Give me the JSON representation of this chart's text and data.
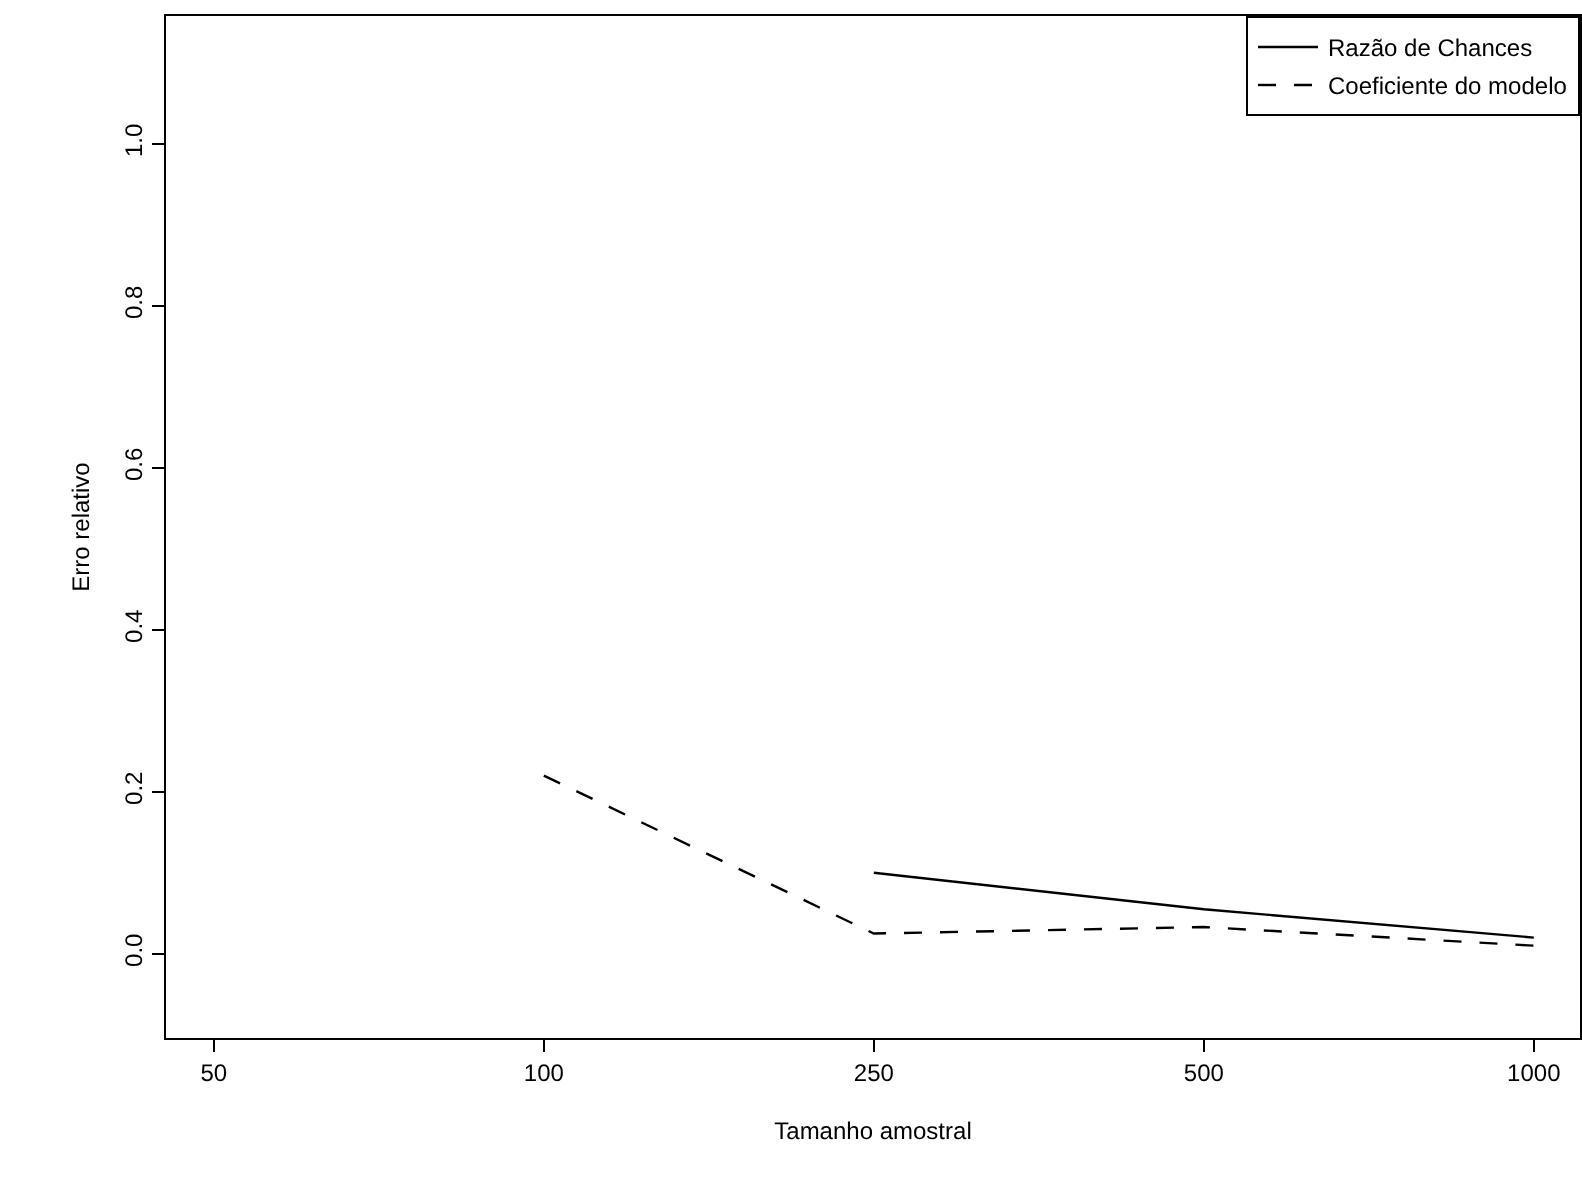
{
  "chart_data": {
    "type": "line",
    "xlabel": "Tamanho amostral",
    "ylabel": "Erro relativo",
    "categories": [
      "50",
      "100",
      "250",
      "500",
      "1000"
    ],
    "series": [
      {
        "name": "Razão de Chances",
        "color": "#000000",
        "line_style": "solid",
        "values": [
          null,
          null,
          0.1,
          0.055,
          0.02
        ]
      },
      {
        "name": "Coeficiente do modelo",
        "color": "#000000",
        "line_style": "dashed",
        "values": [
          null,
          0.22,
          0.025,
          0.033,
          0.01
        ]
      }
    ],
    "ylim": [
      -0.104,
      1.158
    ],
    "yticks": [
      {
        "value": 0,
        "label": "0.0"
      },
      {
        "value": 0.2,
        "label": "0.2"
      },
      {
        "value": 0.4,
        "label": "0.4"
      },
      {
        "value": 0.6,
        "label": "0.6"
      },
      {
        "value": 0.8,
        "label": "0.8"
      },
      {
        "value": 1,
        "label": "1.0"
      }
    ],
    "grid": false,
    "legend": "top right",
    "marker": "none"
  }
}
